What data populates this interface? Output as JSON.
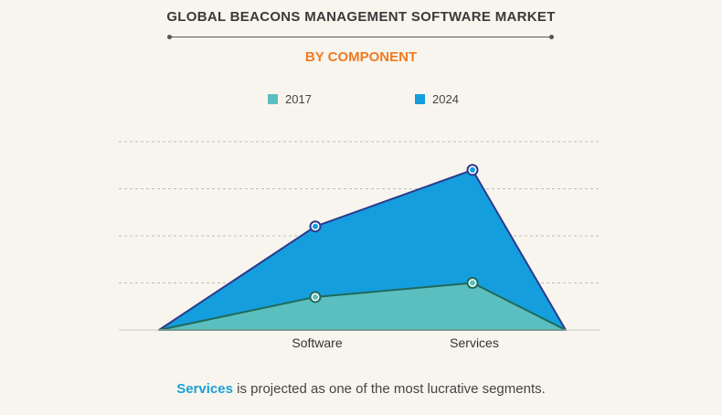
{
  "header": {
    "title": "GLOBAL BEACONS MANAGEMENT SOFTWARE MARKET",
    "subtitle": "BY COMPONENT"
  },
  "footer": {
    "highlight": "Services",
    "text": " is projected as one of the most lucrative segments."
  },
  "colors": {
    "series_2017": "#5bbfbf",
    "series_2024": "#149edd",
    "line_2017": "#1f6a5a",
    "line_2024": "#2c3a8c",
    "highlight": "#1ea0d8",
    "subtitle": "#f07a22"
  },
  "chart_data": {
    "type": "area",
    "categories": [
      "",
      "Software",
      "Services",
      ""
    ],
    "series": [
      {
        "name": "2017",
        "values": [
          0,
          0.7,
          1.0,
          0
        ]
      },
      {
        "name": "2024",
        "values": [
          0,
          2.2,
          3.4,
          0
        ]
      }
    ],
    "ylim": [
      0,
      4
    ],
    "grid": true,
    "legend": "top-center",
    "xlabel": "",
    "ylabel": ""
  }
}
